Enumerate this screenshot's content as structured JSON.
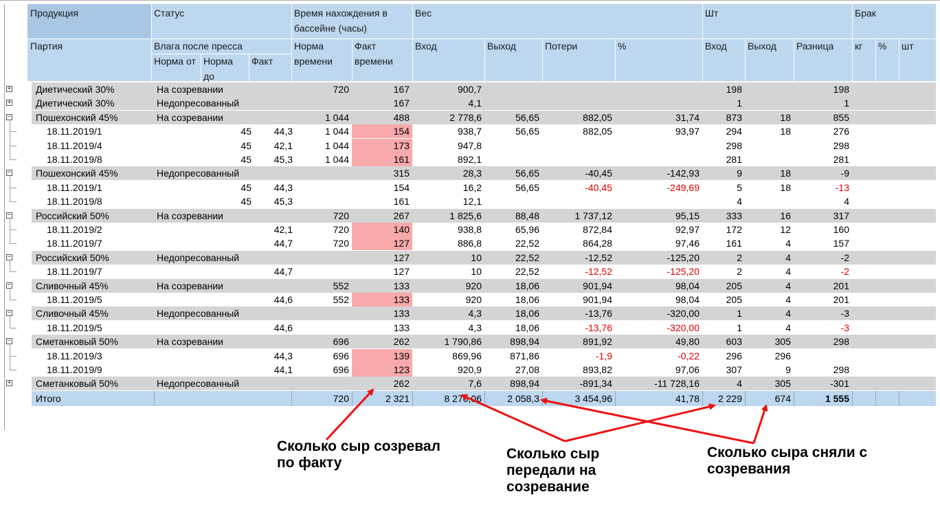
{
  "header": {
    "produkt": "Продукция",
    "status": "Статус",
    "vremya": "Время нахождения в бассейне (часы)",
    "ves": "Вес",
    "sht": "Шт",
    "brak": "Брак",
    "partiya": "Партия",
    "vlaga": "Влага после пресса",
    "norma_ot": "Норма от",
    "norma_do": "Норма до",
    "fakt": "Факт",
    "norma_vremeni": "Норма времени",
    "fakt_vremeni": "Факт времени",
    "ves_vhod": "Вход",
    "ves_vyhod": "Выход",
    "poteri": "Потери",
    "pct": "%",
    "sht_vhod": "Вход",
    "sht_vyhod": "Выход",
    "raznica": "Разница",
    "brak_kg": "кг",
    "brak_pct": "%",
    "brak_sht": "шт"
  },
  "rows": [
    {
      "type": "group",
      "toggle": "+",
      "name": "Диетический 30%",
      "status": "На созревании",
      "norma_vr": "720",
      "fakt_vr": "167",
      "ves_in": "900,7",
      "ves_out": "",
      "poteri": "",
      "pct": "",
      "sht_in": "198",
      "sht_out": "",
      "raznica": "198"
    },
    {
      "type": "group",
      "toggle": "+",
      "name": "Диетический 30%",
      "status": "Недопресованный",
      "norma_vr": "",
      "fakt_vr": "167",
      "ves_in": "4,1",
      "ves_out": "",
      "poteri": "",
      "pct": "",
      "sht_in": "1",
      "sht_out": "",
      "raznica": "1"
    },
    {
      "type": "group",
      "toggle": "−",
      "name": "Пошехонский 45%",
      "status": "На созревании",
      "norma_vr": "1 044",
      "fakt_vr": "488",
      "ves_in": "2 778,6",
      "ves_out": "56,65",
      "poteri": "882,05",
      "pct": "31,74",
      "sht_in": "873",
      "sht_out": "18",
      "raznica": "855"
    },
    {
      "type": "child",
      "name": "18.11.2019/1",
      "norma_ot": "45",
      "fakt": "44,3",
      "norma_vr": "1 044",
      "fakt_vr": "154",
      "pink": true,
      "ves_in": "938,7",
      "ves_out": "56,65",
      "poteri": "882,05",
      "pct": "93,97",
      "sht_in": "294",
      "sht_out": "18",
      "raznica": "276"
    },
    {
      "type": "child",
      "name": "18.11.2019/4",
      "norma_ot": "45",
      "fakt": "42,1",
      "norma_vr": "1 044",
      "fakt_vr": "173",
      "pink": true,
      "ves_in": "947,8",
      "ves_out": "",
      "poteri": "",
      "pct": "",
      "sht_in": "298",
      "sht_out": "",
      "raznica": "298"
    },
    {
      "type": "child",
      "name": "18.11.2019/8",
      "norma_ot": "45",
      "fakt": "45,3",
      "norma_vr": "1 044",
      "fakt_vr": "161",
      "pink": true,
      "ves_in": "892,1",
      "ves_out": "",
      "poteri": "",
      "pct": "",
      "sht_in": "281",
      "sht_out": "",
      "raznica": "281"
    },
    {
      "type": "group",
      "toggle": "−",
      "name": "Пошехонский 45%",
      "status": "Недопресованный",
      "norma_vr": "",
      "fakt_vr": "315",
      "ves_in": "28,3",
      "ves_out": "56,65",
      "poteri": "-40,45",
      "pct": "-142,93",
      "sht_in": "9",
      "sht_out": "18",
      "raznica": "-9"
    },
    {
      "type": "child",
      "name": "18.11.2019/1",
      "norma_ot": "45",
      "fakt": "44,3",
      "norma_vr": "",
      "fakt_vr": "154",
      "ves_in": "16,2",
      "ves_out": "56,65",
      "poteri": "-40,45",
      "poteri_neg": true,
      "pct": "-249,69",
      "pct_neg": true,
      "sht_in": "5",
      "sht_out": "18",
      "raznica": "-13",
      "raznica_neg": true
    },
    {
      "type": "child",
      "name": "18.11.2019/8",
      "norma_ot": "45",
      "fakt": "45,3",
      "norma_vr": "",
      "fakt_vr": "161",
      "ves_in": "12,1",
      "ves_out": "",
      "poteri": "",
      "pct": "",
      "sht_in": "4",
      "sht_out": "",
      "raznica": "4"
    },
    {
      "type": "group",
      "toggle": "−",
      "name": "Российский 50%",
      "status": "На созревании",
      "norma_vr": "720",
      "fakt_vr": "267",
      "ves_in": "1 825,6",
      "ves_out": "88,48",
      "poteri": "1 737,12",
      "pct": "95,15",
      "sht_in": "333",
      "sht_out": "16",
      "raznica": "317"
    },
    {
      "type": "child",
      "name": "18.11.2019/2",
      "norma_ot": "",
      "fakt": "42,1",
      "norma_vr": "720",
      "fakt_vr": "140",
      "pink": true,
      "ves_in": "938,8",
      "ves_out": "65,96",
      "poteri": "872,84",
      "pct": "92,97",
      "sht_in": "172",
      "sht_out": "12",
      "raznica": "160"
    },
    {
      "type": "child",
      "name": "18.11.2019/7",
      "norma_ot": "",
      "fakt": "44,7",
      "norma_vr": "720",
      "fakt_vr": "127",
      "pink": true,
      "ves_in": "886,8",
      "ves_out": "22,52",
      "poteri": "864,28",
      "pct": "97,46",
      "sht_in": "161",
      "sht_out": "4",
      "raznica": "157"
    },
    {
      "type": "group",
      "toggle": "−",
      "name": "Российский 50%",
      "status": "Недопресованный",
      "norma_vr": "",
      "fakt_vr": "127",
      "ves_in": "10",
      "ves_out": "22,52",
      "poteri": "-12,52",
      "pct": "-125,20",
      "sht_in": "2",
      "sht_out": "4",
      "raznica": "-2"
    },
    {
      "type": "child",
      "name": "18.11.2019/7",
      "norma_ot": "",
      "fakt": "44,7",
      "norma_vr": "",
      "fakt_vr": "127",
      "ves_in": "10",
      "ves_out": "22,52",
      "poteri": "-12,52",
      "poteri_neg": true,
      "pct": "-125,20",
      "pct_neg": true,
      "sht_in": "2",
      "sht_out": "4",
      "raznica": "-2",
      "raznica_neg": true
    },
    {
      "type": "group",
      "toggle": "−",
      "name": "Сливочный 45%",
      "status": "На созревании",
      "norma_vr": "552",
      "fakt_vr": "133",
      "ves_in": "920",
      "ves_out": "18,06",
      "poteri": "901,94",
      "pct": "98,04",
      "sht_in": "205",
      "sht_out": "4",
      "raznica": "201"
    },
    {
      "type": "child",
      "name": "18.11.2019/5",
      "norma_ot": "",
      "fakt": "44,6",
      "norma_vr": "552",
      "fakt_vr": "133",
      "pink": true,
      "ves_in": "920",
      "ves_out": "18,06",
      "poteri": "901,94",
      "pct": "98,04",
      "sht_in": "205",
      "sht_out": "4",
      "raznica": "201"
    },
    {
      "type": "group",
      "toggle": "−",
      "name": "Сливочный 45%",
      "status": "Недопресованный",
      "norma_vr": "",
      "fakt_vr": "133",
      "ves_in": "4,3",
      "ves_out": "18,06",
      "poteri": "-13,76",
      "pct": "-320,00",
      "sht_in": "1",
      "sht_out": "4",
      "raznica": "-3"
    },
    {
      "type": "child",
      "name": "18.11.2019/5",
      "norma_ot": "",
      "fakt": "44,6",
      "norma_vr": "",
      "fakt_vr": "133",
      "ves_in": "4,3",
      "ves_out": "18,06",
      "poteri": "-13,76",
      "poteri_neg": true,
      "pct": "-320,00",
      "pct_neg": true,
      "sht_in": "1",
      "sht_out": "4",
      "raznica": "-3",
      "raznica_neg": true
    },
    {
      "type": "group",
      "toggle": "−",
      "name": "Сметанковый 50%",
      "status": "На созревании",
      "norma_vr": "696",
      "fakt_vr": "262",
      "ves_in": "1 790,86",
      "ves_out": "898,94",
      "poteri": "891,92",
      "pct": "49,80",
      "sht_in": "603",
      "sht_out": "305",
      "raznica": "298"
    },
    {
      "type": "child",
      "name": "18.11.2019/3",
      "norma_ot": "",
      "fakt": "44,3",
      "norma_vr": "696",
      "fakt_vr": "139",
      "pink": true,
      "ves_in": "869,96",
      "ves_out": "871,86",
      "poteri": "-1,9",
      "poteri_neg": true,
      "pct": "-0,22",
      "pct_neg": true,
      "sht_in": "296",
      "sht_out": "296",
      "raznica": ""
    },
    {
      "type": "child",
      "name": "18.11.2019/9",
      "norma_ot": "",
      "fakt": "44,1",
      "norma_vr": "696",
      "fakt_vr": "123",
      "pink": true,
      "ves_in": "920,9",
      "ves_out": "27,08",
      "poteri": "893,82",
      "pct": "97,06",
      "sht_in": "307",
      "sht_out": "9",
      "raznica": "298"
    },
    {
      "type": "group",
      "toggle": "+",
      "name": "Сметанковый 50%",
      "status": "Недопресованный",
      "norma_vr": "",
      "fakt_vr": "262",
      "ves_in": "7,6",
      "ves_out": "898,94",
      "poteri": "-891,34",
      "pct": "-11 728,16",
      "sht_in": "4",
      "sht_out": "305",
      "raznica": "-301"
    }
  ],
  "total": {
    "label": "Итого",
    "norma_vr": "720",
    "fakt_vr": "2 321",
    "ves_in": "8 270,06",
    "ves_out": "2 058,3",
    "poteri": "3 454,96",
    "pct": "41,78",
    "sht_in": "2 229",
    "sht_out": "674",
    "raznica": "1 555"
  },
  "annotations": {
    "a1": "Сколько сыр созревал по факту",
    "a2": "Сколько сыр передали на созревание",
    "a3": "Сколько сыра сняли с созревания"
  },
  "colors": {
    "header": "#bdd7ee",
    "group_row": "#d4d4d4",
    "pink_highlight": "#f7a9ab",
    "negative": "#e00000",
    "arrow": "#ee1111"
  }
}
